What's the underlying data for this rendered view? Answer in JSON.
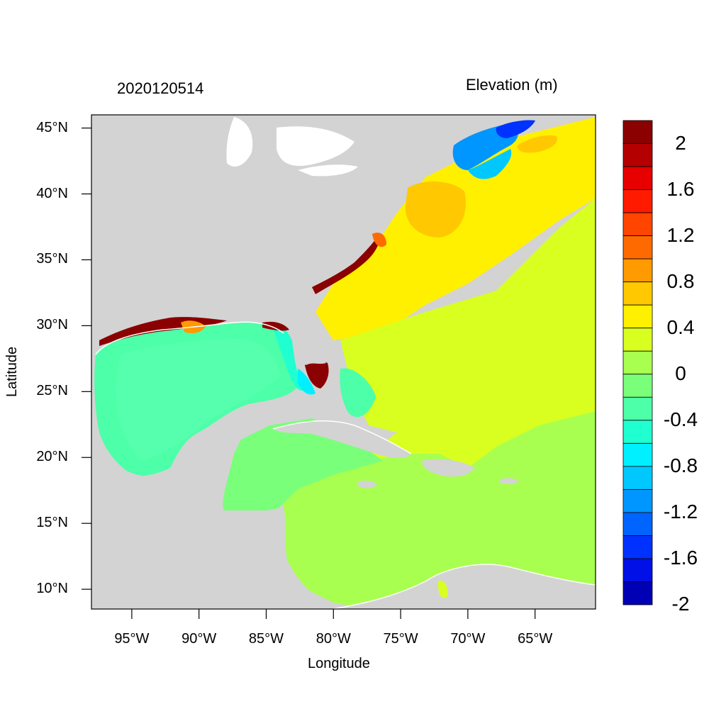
{
  "plot": {
    "left_title": "2020120514",
    "right_title": "Elevation (m)",
    "x_axis_title": "Longitude",
    "y_axis_title": "Latitude",
    "lon_range": [
      -98,
      -60.5
    ],
    "lat_range": [
      8.5,
      46
    ],
    "x_ticks": [
      {
        "value": -95,
        "label": "95°W"
      },
      {
        "value": -90,
        "label": "90°W"
      },
      {
        "value": -85,
        "label": "85°W"
      },
      {
        "value": -80,
        "label": "80°W"
      },
      {
        "value": -75,
        "label": "75°W"
      },
      {
        "value": -70,
        "label": "70°W"
      },
      {
        "value": -65,
        "label": "65°W"
      }
    ],
    "y_ticks": [
      {
        "value": 45,
        "label": "45°N"
      },
      {
        "value": 40,
        "label": "40°N"
      },
      {
        "value": 35,
        "label": "35°N"
      },
      {
        "value": 30,
        "label": "30°N"
      },
      {
        "value": 25,
        "label": "25°N"
      },
      {
        "value": 20,
        "label": "20°N"
      },
      {
        "value": 15,
        "label": "15°N"
      },
      {
        "value": 10,
        "label": "10°N"
      }
    ],
    "land_color": "#d3d3d3"
  },
  "colorbar": {
    "colors_top_to_bottom": [
      "#8b0000",
      "#b40000",
      "#e60000",
      "#ff1a00",
      "#ff4500",
      "#ff6a00",
      "#ff9a00",
      "#ffc800",
      "#fff000",
      "#d9ff20",
      "#a8ff50",
      "#7aff7a",
      "#4dffa8",
      "#20ffd0",
      "#00f0ff",
      "#00c8ff",
      "#0096ff",
      "#0064ff",
      "#0032ff",
      "#0010e6",
      "#0000b4"
    ],
    "tick_labels": [
      "2",
      "1.6",
      "1.2",
      "0.8",
      "0.4",
      "0",
      "-0.4",
      "-0.8",
      "-1.2",
      "-1.6",
      "-2"
    ]
  }
}
